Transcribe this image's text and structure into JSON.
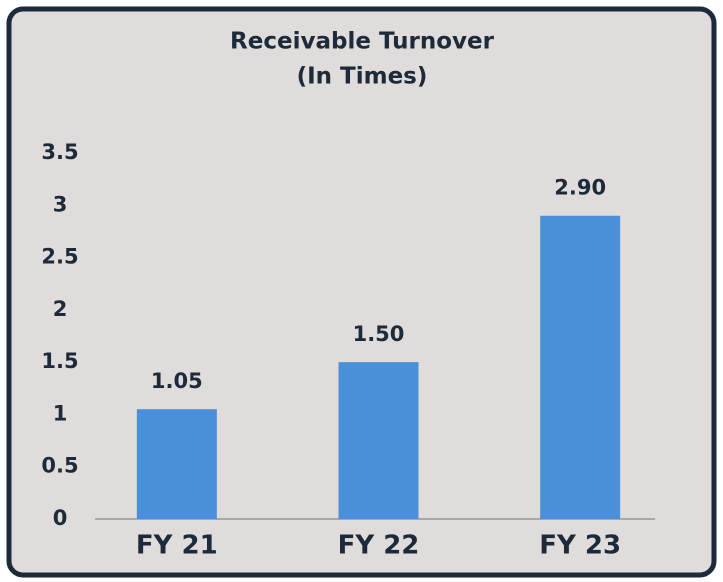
{
  "chart_data": {
    "type": "bar",
    "title": "Receivable Turnover",
    "subtitle": "(In Times)",
    "categories": [
      "FY 21",
      "FY 22",
      "FY 23"
    ],
    "values": [
      1.05,
      1.5,
      2.9
    ],
    "value_labels": [
      "1.05",
      "1.50",
      "2.90"
    ],
    "color": "#4a90d9",
    "ylim": [
      0,
      3.5
    ],
    "yticks": [
      0,
      0.5,
      1,
      1.5,
      2,
      2.5,
      3,
      3.5
    ],
    "grid": false
  }
}
